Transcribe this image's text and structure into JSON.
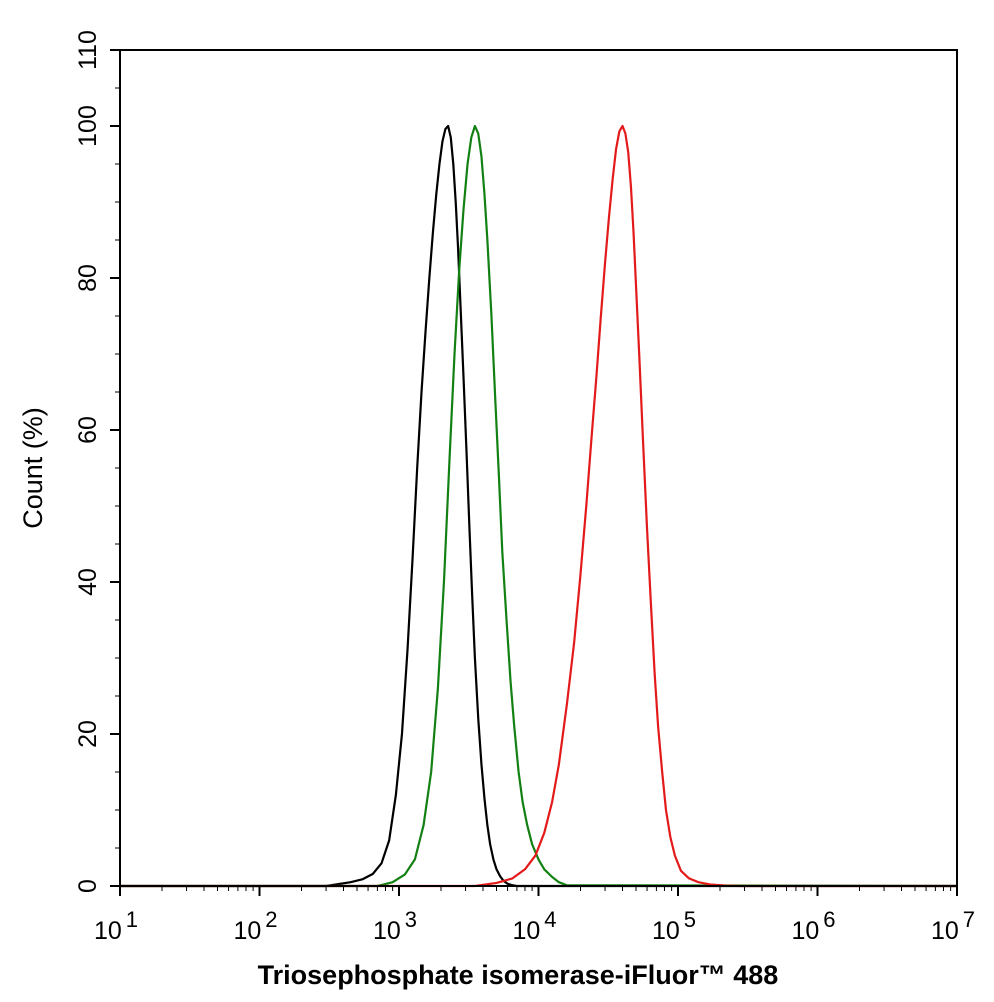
{
  "chart_data": {
    "type": "line",
    "title": "",
    "xlabel": "Triosephosphate isomerase-iFluor™ 488",
    "ylabel": "Count  (%)",
    "x_scale": "log",
    "xlim": [
      10,
      10000000
    ],
    "ylim": [
      0,
      110
    ],
    "x_ticks": [
      {
        "value": 10,
        "base": "10",
        "exp": "1"
      },
      {
        "value": 100,
        "base": "10",
        "exp": "2"
      },
      {
        "value": 1000,
        "base": "10",
        "exp": "3"
      },
      {
        "value": 10000,
        "base": "10",
        "exp": "4"
      },
      {
        "value": 100000,
        "base": "10",
        "exp": "5"
      },
      {
        "value": 1000000,
        "base": "10",
        "exp": "6"
      },
      {
        "value": 10000000,
        "base": "10",
        "exp": "7"
      }
    ],
    "y_ticks": [
      0,
      20,
      40,
      60,
      80,
      100,
      110
    ],
    "grid": false,
    "legend": "none",
    "series": [
      {
        "color": "#000000",
        "x": [
          10,
          300,
          450,
          550,
          650,
          750,
          850,
          950,
          1050,
          1150,
          1250,
          1350,
          1450,
          1550,
          1650,
          1750,
          1850,
          1950,
          2050,
          2150,
          2250,
          2350,
          2450,
          2550,
          2650,
          2750,
          2900,
          3050,
          3200,
          3350,
          3500,
          3700,
          3900,
          4100,
          4300,
          4500,
          4750,
          5000,
          5300,
          5600,
          6000,
          6500,
          7000,
          8000,
          10000000
        ],
        "y": [
          0,
          0,
          0.5,
          0.9,
          1.6,
          3,
          6,
          12,
          20,
          31,
          43,
          55,
          65,
          73,
          80,
          86,
          91,
          95,
          98,
          99.6,
          100,
          98.5,
          95,
          90,
          84,
          77,
          67,
          57,
          47,
          38,
          30,
          22,
          16,
          11.5,
          8,
          5.5,
          3.5,
          2.2,
          1.3,
          0.7,
          0.3,
          0.1,
          0,
          0,
          0
        ]
      },
      {
        "color": "#138013",
        "x": [
          10,
          700,
          900,
          1100,
          1300,
          1500,
          1700,
          1900,
          2100,
          2300,
          2500,
          2700,
          2900,
          3100,
          3300,
          3500,
          3700,
          3900,
          4100,
          4300,
          4600,
          4900,
          5200,
          5500,
          5900,
          6300,
          6700,
          7200,
          7700,
          8300,
          9000,
          10000,
          11000,
          12500,
          14000,
          16000,
          10000000
        ],
        "y": [
          0,
          0,
          0.5,
          1.5,
          3.5,
          8,
          15,
          26,
          40,
          56,
          70,
          81,
          89,
          95,
          98.5,
          100,
          99,
          96,
          91,
          85,
          75,
          64,
          54,
          44,
          35,
          27,
          21,
          15,
          11,
          8,
          5.5,
          3.5,
          2.2,
          1.2,
          0.5,
          0.1,
          0
        ]
      },
      {
        "color": "#e31a1a",
        "x": [
          10,
          3500,
          5000,
          6500,
          8000,
          9500,
          11000,
          12500,
          14000,
          16000,
          18000,
          20000,
          22000,
          24000,
          26000,
          28000,
          30000,
          32000,
          34000,
          36000,
          38000,
          40000,
          42000,
          44000,
          46000,
          48000,
          50000,
          53000,
          56000,
          60000,
          64000,
          68000,
          72000,
          77000,
          82000,
          88000,
          95000,
          105000,
          120000,
          140000,
          170000,
          220000,
          280000,
          10000000
        ],
        "y": [
          0,
          0,
          0.4,
          1,
          2.2,
          4,
          7,
          11,
          16,
          24,
          32,
          41,
          50,
          59,
          67,
          75,
          82,
          88,
          93,
          97,
          99.3,
          100,
          99,
          96.5,
          92,
          86,
          79,
          69,
          59,
          47,
          37,
          28,
          21,
          15,
          10,
          6.5,
          4,
          2,
          1,
          0.5,
          0.2,
          0.05,
          0,
          0
        ]
      }
    ]
  }
}
